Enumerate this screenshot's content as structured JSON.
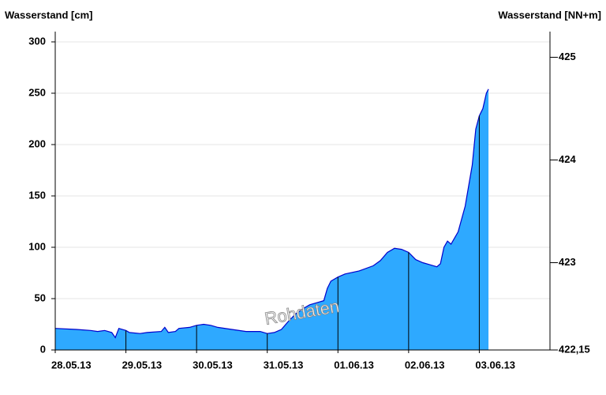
{
  "chart_data": {
    "type": "area",
    "ylabel": "Wasserstand [cm]",
    "y2label": "Wasserstand [NN+m]",
    "watermark": "Rohdaten",
    "x": [
      0,
      0.3,
      0.5,
      0.6,
      0.7,
      0.8,
      0.85,
      0.9,
      1.0,
      1.05,
      1.2,
      1.3,
      1.5,
      1.55,
      1.6,
      1.7,
      1.75,
      1.9,
      2.0,
      2.1,
      2.2,
      2.3,
      2.5,
      2.7,
      2.9,
      3.0,
      3.1,
      3.2,
      3.3,
      3.4,
      3.5,
      3.6,
      3.7,
      3.8,
      3.85,
      3.9,
      4.0,
      4.1,
      4.3,
      4.5,
      4.6,
      4.7,
      4.8,
      4.9,
      5.0,
      5.1,
      5.2,
      5.3,
      5.4,
      5.45,
      5.5,
      5.55,
      5.6,
      5.7,
      5.8,
      5.9,
      5.95,
      6.0,
      6.05,
      6.1,
      6.13
    ],
    "series": [
      {
        "color": "#2ea9ff",
        "line_color": "#0000cc",
        "values": [
          21,
          20,
          19,
          18,
          19,
          17,
          12,
          21,
          19,
          17,
          16,
          17,
          18,
          22,
          17,
          18,
          21,
          22,
          24,
          25,
          24,
          22,
          20,
          18,
          18,
          16,
          17,
          20,
          28,
          35,
          40,
          44,
          46,
          48,
          60,
          67,
          71,
          74,
          77,
          82,
          87,
          95,
          99,
          98,
          95,
          88,
          85,
          83,
          81,
          84,
          100,
          106,
          103,
          115,
          140,
          180,
          215,
          228,
          235,
          250,
          254
        ]
      }
    ],
    "xlim": [
      0,
      7
    ],
    "xticks": [
      {
        "value": 0,
        "label": "28.05.13"
      },
      {
        "value": 1,
        "label": "29.05.13"
      },
      {
        "value": 2,
        "label": "30.05.13"
      },
      {
        "value": 3,
        "label": "31.05.13"
      },
      {
        "value": 4,
        "label": "01.06.13"
      },
      {
        "value": 5,
        "label": "02.06.13"
      },
      {
        "value": 6,
        "label": "03.06.13"
      }
    ],
    "ylim": [
      0,
      310
    ],
    "yticks": [
      0,
      50,
      100,
      150,
      200,
      250,
      300
    ],
    "y2lim": [
      422.15,
      425.25
    ],
    "y2ticks": [
      425,
      424,
      423,
      {
        "value": 422.15,
        "label": "422,15"
      }
    ],
    "grid": true
  }
}
